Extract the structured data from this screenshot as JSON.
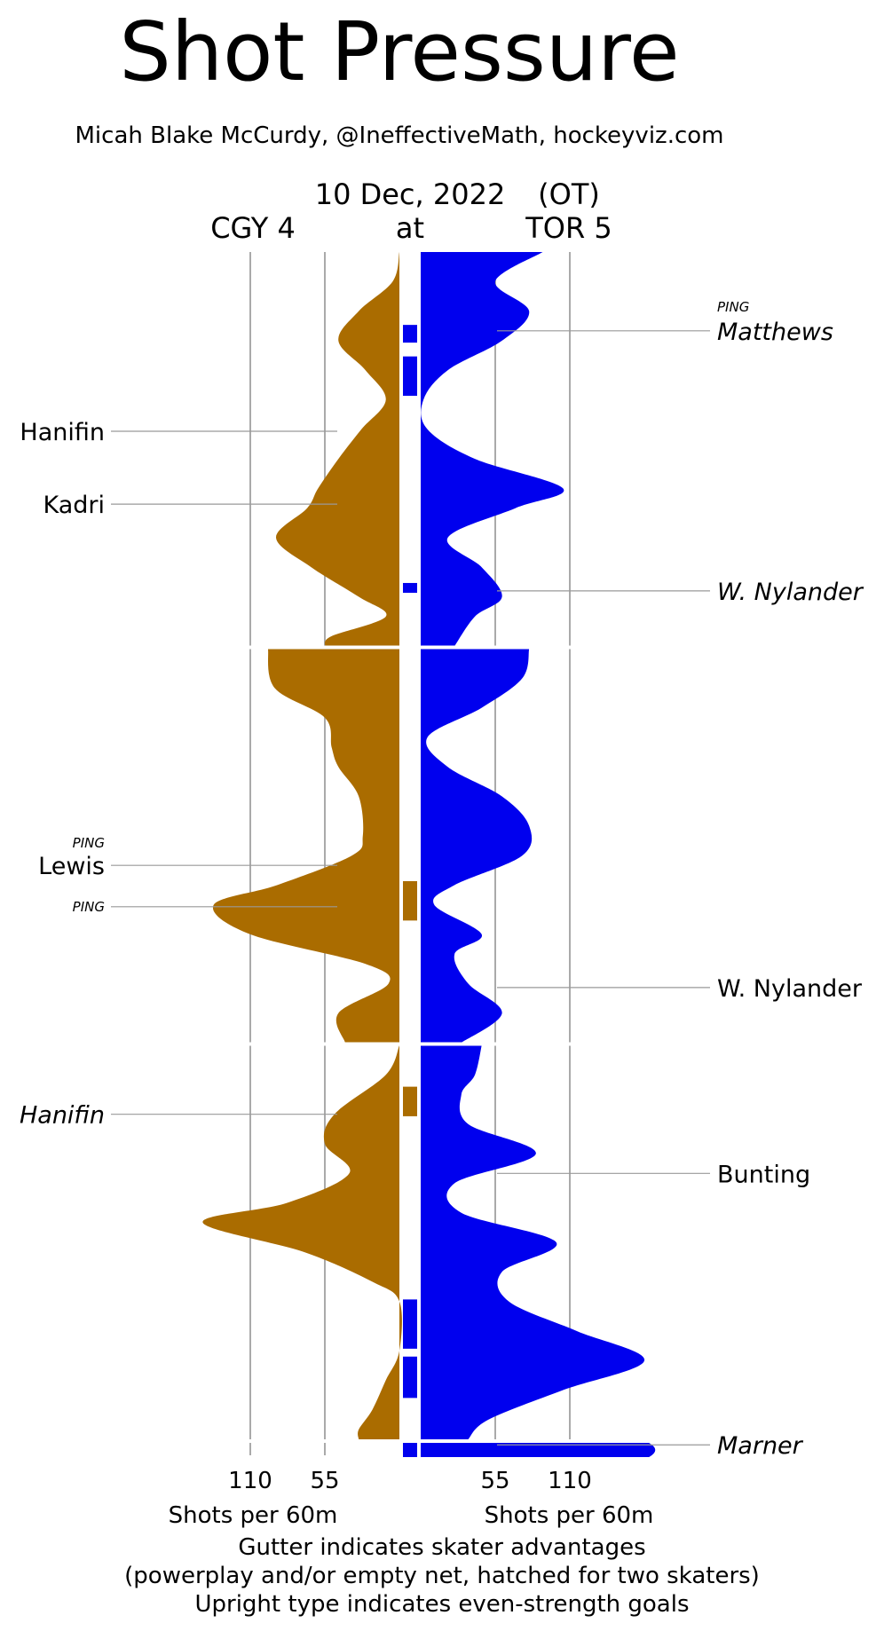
{
  "title": "Shot Pressure",
  "credit": "Micah Blake McCurdy, @IneffectiveMath, hockeyviz.com",
  "header": {
    "date": "10 Dec, 2022",
    "ot": "(OT)",
    "away": "CGY 4",
    "at": "at",
    "home": "TOR 5"
  },
  "footer": {
    "line1": "Gutter indicates skater advantages",
    "line2": "(powerplay and/or empty net, hatched for two skaters)",
    "line3": "Upright type indicates even-strength goals"
  },
  "colors": {
    "away": "#aa6c00",
    "home": "#0000ee",
    "grid": "#aaaaaa",
    "leader": "#999999"
  },
  "chart_data": {
    "type": "area",
    "title": "Shot Pressure",
    "xlabel": "Shots per 60m",
    "ylabel": "",
    "axis_ticks": [
      110,
      55
    ],
    "axis_ticks_home": [
      55,
      110
    ],
    "periods": 3,
    "overtime": true,
    "series": [
      {
        "name": "CGY 4",
        "side": "away",
        "period_profiles": [
          [
            [
              0,
              0
            ],
            [
              1.5,
              5
            ],
            [
              3,
              30
            ],
            [
              4.5,
              45
            ],
            [
              6,
              25
            ],
            [
              7.5,
              10
            ],
            [
              9,
              28
            ],
            [
              10.5,
              45
            ],
            [
              12,
              60
            ],
            [
              13,
              68
            ],
            [
              14.5,
              91
            ],
            [
              16,
              65
            ],
            [
              17.5,
              30
            ],
            [
              18.5,
              10
            ],
            [
              19.5,
              50
            ],
            [
              20,
              55
            ]
          ],
          [
            [
              0,
              97
            ],
            [
              2,
              92
            ],
            [
              3.5,
              55
            ],
            [
              5,
              50
            ],
            [
              6,
              45
            ],
            [
              7.5,
              30
            ],
            [
              9.5,
              27
            ],
            [
              10.5,
              35
            ],
            [
              12,
              90
            ],
            [
              13,
              137
            ],
            [
              14.5,
              110
            ],
            [
              16,
              25
            ],
            [
              17,
              8
            ],
            [
              18.5,
              45
            ],
            [
              20,
              40
            ]
          ],
          [
            [
              0,
              0
            ],
            [
              1.5,
              10
            ],
            [
              3.5,
              48
            ],
            [
              5,
              55
            ],
            [
              6.5,
              37
            ],
            [
              8,
              83
            ],
            [
              9,
              145
            ],
            [
              10.5,
              70
            ],
            [
              12,
              20
            ],
            [
              13,
              0
            ],
            [
              15.5,
              0
            ],
            [
              17,
              10
            ],
            [
              18.5,
              20
            ],
            [
              19.5,
              30
            ],
            [
              20,
              30
            ]
          ]
        ],
        "ot_profile": [
          [
            0,
            0
          ],
          [
            5,
            0
          ]
        ]
      },
      {
        "name": "TOR 5",
        "side": "home",
        "period_profiles": [
          [
            [
              0,
              90
            ],
            [
              1.5,
              55
            ],
            [
              3,
              80
            ],
            [
              4.5,
              60
            ],
            [
              6,
              20
            ],
            [
              7.5,
              2
            ],
            [
              9,
              5
            ],
            [
              10.5,
              40
            ],
            [
              12,
              105
            ],
            [
              13,
              70
            ],
            [
              14.5,
              20
            ],
            [
              16,
              45
            ],
            [
              17.5,
              60
            ],
            [
              18.5,
              40
            ],
            [
              20,
              25
            ]
          ],
          [
            [
              0,
              80
            ],
            [
              1.5,
              75
            ],
            [
              3,
              45
            ],
            [
              4.5,
              5
            ],
            [
              6,
              20
            ],
            [
              7.5,
              60
            ],
            [
              9,
              80
            ],
            [
              10.5,
              75
            ],
            [
              12,
              25
            ],
            [
              13,
              10
            ],
            [
              14.5,
              45
            ],
            [
              15.5,
              25
            ],
            [
              17,
              35
            ],
            [
              18.5,
              60
            ],
            [
              20,
              30
            ]
          ],
          [
            [
              0,
              45
            ],
            [
              1.5,
              40
            ],
            [
              2.5,
              30
            ],
            [
              4,
              35
            ],
            [
              5.5,
              85
            ],
            [
              7,
              25
            ],
            [
              8.5,
              30
            ],
            [
              10,
              100
            ],
            [
              11.5,
              60
            ],
            [
              13,
              65
            ],
            [
              14.5,
              115
            ],
            [
              16,
              165
            ],
            [
              17.5,
              105
            ],
            [
              19,
              50
            ],
            [
              20,
              35
            ]
          ]
        ],
        "ot_profile": [
          [
            0,
            175
          ],
          [
            5,
            175
          ]
        ]
      }
    ],
    "gutter": [
      {
        "period": 1,
        "side": "home",
        "start": 3.7,
        "end": 4.6
      },
      {
        "period": 1,
        "side": "home",
        "start": 5.3,
        "end": 7.3
      },
      {
        "period": 1,
        "side": "home",
        "start": 16.8,
        "end": 17.3
      },
      {
        "period": 2,
        "side": "away",
        "start": 11.8,
        "end": 13.8
      },
      {
        "period": 3,
        "side": "away",
        "start": 2.1,
        "end": 3.6
      },
      {
        "period": 3,
        "side": "home",
        "start": 12.9,
        "end": 15.4
      },
      {
        "period": 3,
        "side": "home",
        "start": 15.8,
        "end": 17.9
      },
      {
        "period": 4,
        "side": "home",
        "start": 0,
        "end": 4.5
      }
    ],
    "goals": [
      {
        "team": "TOR",
        "period": 1,
        "time": 4.0,
        "scorer": "Matthews",
        "ping": "PING",
        "even_strength": false
      },
      {
        "team": "CGY",
        "period": 1,
        "time": 9.1,
        "scorer": "Hanifin",
        "ping": "",
        "even_strength": true
      },
      {
        "team": "CGY",
        "period": 1,
        "time": 12.8,
        "scorer": "Kadri",
        "ping": "",
        "even_strength": true
      },
      {
        "team": "TOR",
        "period": 1,
        "time": 17.2,
        "scorer": "W. Nylander",
        "ping": "",
        "even_strength": false
      },
      {
        "team": "CGY",
        "period": 2,
        "time": 11.0,
        "scorer": "Lewis",
        "ping": "PING",
        "even_strength": true
      },
      {
        "team": "CGY",
        "period": 2,
        "time": 13.1,
        "scorer": "",
        "ping": "PING",
        "even_strength": true
      },
      {
        "team": "TOR",
        "period": 2,
        "time": 17.2,
        "scorer": "W. Nylander",
        "ping": "",
        "even_strength": true
      },
      {
        "team": "CGY",
        "period": 3,
        "time": 3.5,
        "scorer": "Hanifin",
        "ping": "",
        "even_strength": false
      },
      {
        "team": "TOR",
        "period": 3,
        "time": 6.5,
        "scorer": "Bunting",
        "ping": "",
        "even_strength": true
      },
      {
        "team": "TOR",
        "period": 4,
        "time": 0.7,
        "scorer": "Marner",
        "ping": "",
        "even_strength": false
      }
    ]
  }
}
